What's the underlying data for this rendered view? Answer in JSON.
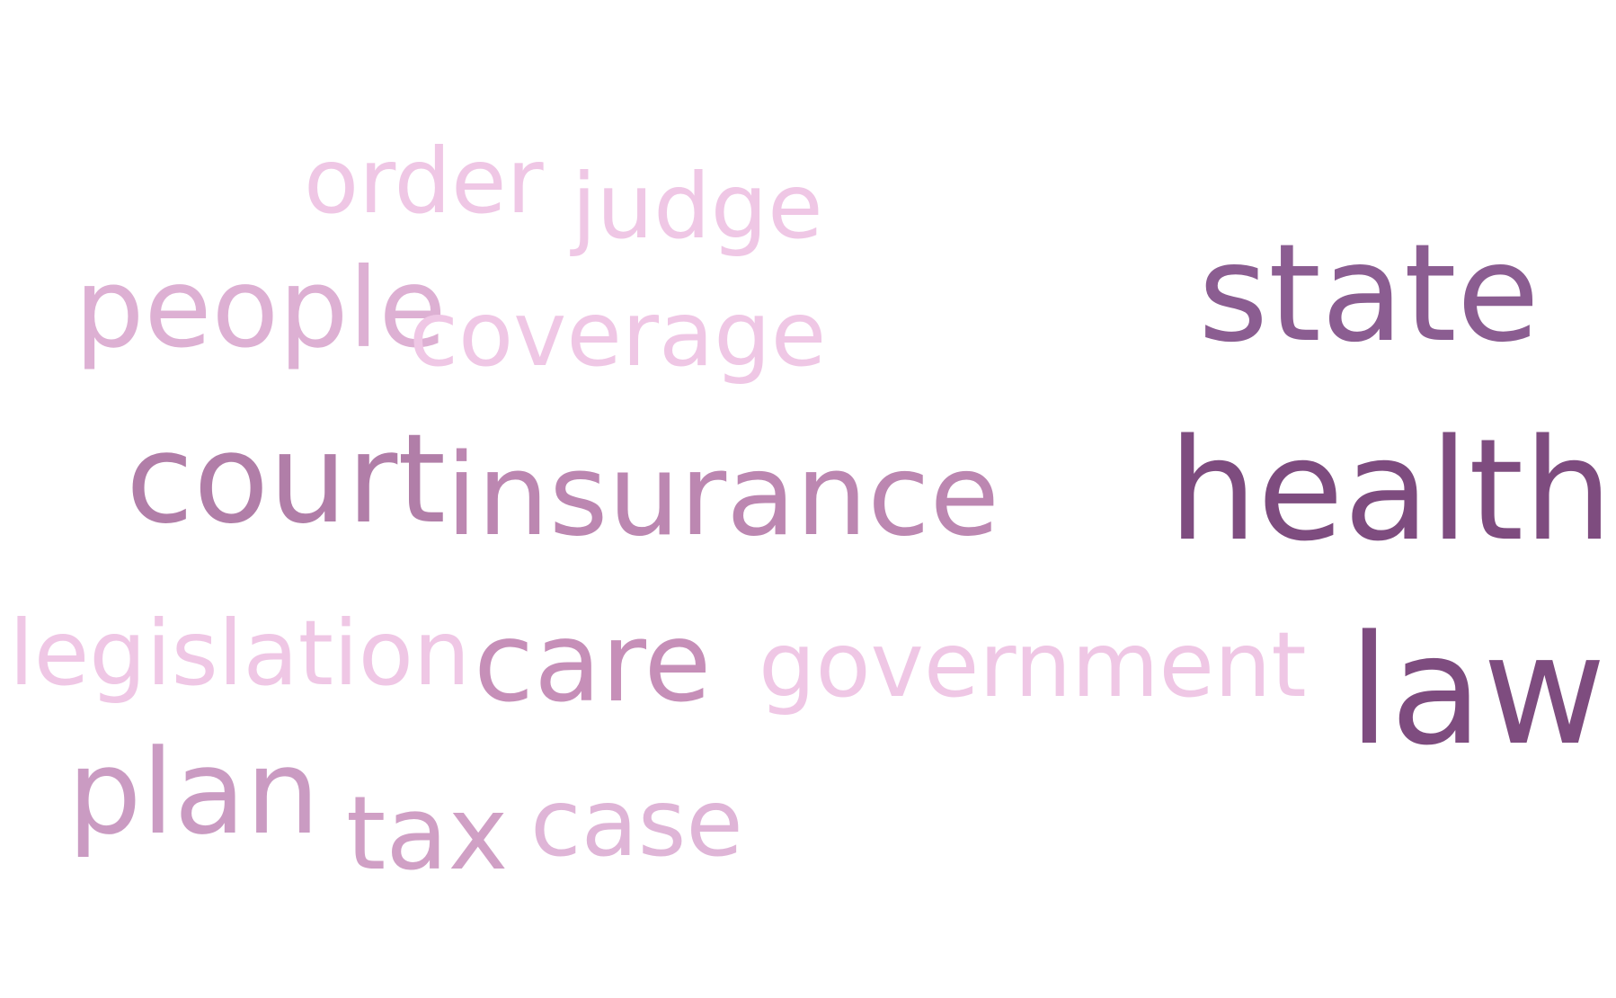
{
  "words": [
    {
      "id": "order",
      "text": "order",
      "color": "#efc7e5"
    },
    {
      "id": "judge",
      "text": "judge",
      "color": "#efc7e5"
    },
    {
      "id": "state",
      "text": "state",
      "color": "#8b5d91"
    },
    {
      "id": "people",
      "text": "people",
      "color": "#ddb0d3"
    },
    {
      "id": "coverage",
      "text": "coverage",
      "color": "#efc7e5"
    },
    {
      "id": "court",
      "text": "court",
      "color": "#b17ea8"
    },
    {
      "id": "insurance",
      "text": "insurance",
      "color": "#bc87b1"
    },
    {
      "id": "health",
      "text": "health",
      "color": "#7e4c7f"
    },
    {
      "id": "legislation",
      "text": "legislation",
      "color": "#efc7e5"
    },
    {
      "id": "care",
      "text": "care",
      "color": "#c68fb8"
    },
    {
      "id": "government",
      "text": "government",
      "color": "#efc7e5"
    },
    {
      "id": "law",
      "text": "law",
      "color": "#7e4c7f"
    },
    {
      "id": "plan",
      "text": "plan",
      "color": "#ca9bc2"
    },
    {
      "id": "tax",
      "text": "tax",
      "color": "#d0a0c5"
    },
    {
      "id": "case",
      "text": "case",
      "color": "#dfb5d7"
    }
  ]
}
